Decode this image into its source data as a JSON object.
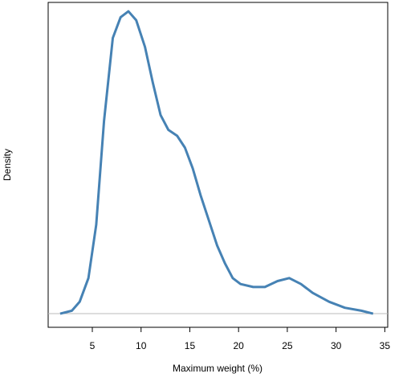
{
  "chart_data": {
    "type": "line",
    "xlabel": "Maximum weight (%)",
    "ylabel": "Density",
    "x": [
      1.7,
      2.9,
      3.7,
      4.6,
      5.4,
      6.2,
      7.1,
      7.9,
      8.7,
      9.5,
      10.4,
      11.2,
      12.0,
      12.8,
      13.7,
      14.5,
      15.3,
      16.1,
      16.9,
      17.8,
      18.6,
      19.4,
      20.2,
      21.5,
      22.7,
      24.0,
      25.2,
      26.4,
      27.6,
      29.3,
      30.9,
      32.6,
      33.8
    ],
    "values": [
      0,
      0.001,
      0.004,
      0.012,
      0.03,
      0.065,
      0.093,
      0.1,
      0.102,
      0.099,
      0.09,
      0.078,
      0.067,
      0.062,
      0.06,
      0.056,
      0.049,
      0.04,
      0.032,
      0.023,
      0.017,
      0.012,
      0.01,
      0.009,
      0.009,
      0.011,
      0.012,
      0.01,
      0.007,
      0.004,
      0.002,
      0.001,
      0
    ],
    "color": "#4682b4",
    "xlim": [
      0.47,
      35.3
    ],
    "xticks": [
      5,
      10,
      15,
      20,
      25,
      30,
      35
    ],
    "ylim": [
      -0.0046,
      0.105
    ]
  }
}
